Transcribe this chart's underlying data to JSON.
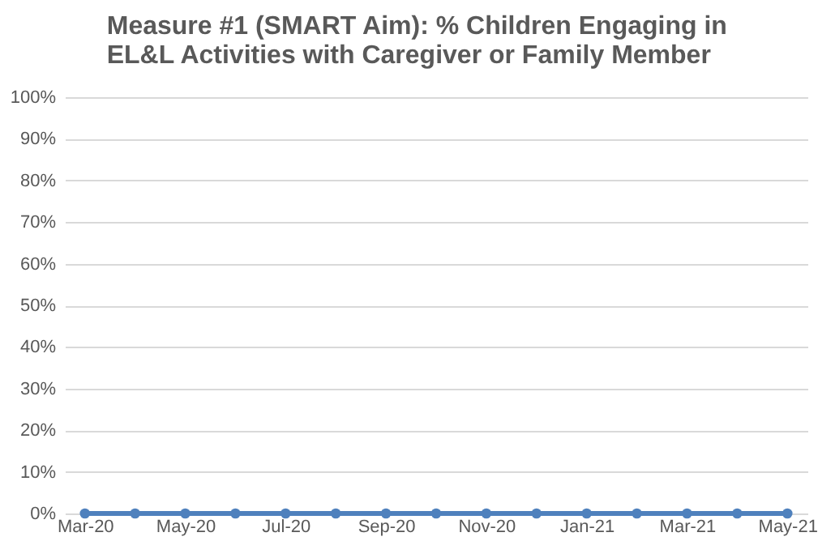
{
  "chart_data": {
    "type": "line",
    "title": "Measure #1 (SMART Aim): % Children Engaging in EL&L Activities with Caregiver or Family Member",
    "categories": [
      "Mar-20",
      null,
      "May-20",
      null,
      "Jul-20",
      null,
      "Sep-20",
      null,
      "Nov-20",
      null,
      "Jan-21",
      null,
      "Mar-21",
      null,
      "May-21"
    ],
    "series": [
      {
        "color": "#4f81bd",
        "values": [
          0,
          0,
          0,
          0,
          0,
          0,
          0,
          0,
          0,
          0,
          0,
          0,
          0,
          0,
          0
        ]
      }
    ],
    "ylim": [
      0,
      100
    ],
    "yticks": [
      {
        "value": 0,
        "label": "0%"
      },
      {
        "value": 10,
        "label": "10%"
      },
      {
        "value": 20,
        "label": "20%"
      },
      {
        "value": 30,
        "label": "30%"
      },
      {
        "value": 40,
        "label": "40%"
      },
      {
        "value": 50,
        "label": "50%"
      },
      {
        "value": 60,
        "label": "60%"
      },
      {
        "value": 70,
        "label": "70%"
      },
      {
        "value": 80,
        "label": "80%"
      },
      {
        "value": 90,
        "label": "90%"
      },
      {
        "value": 100,
        "label": "100%"
      }
    ],
    "grid": "y",
    "marker": "circle",
    "line_style": "solid"
  }
}
